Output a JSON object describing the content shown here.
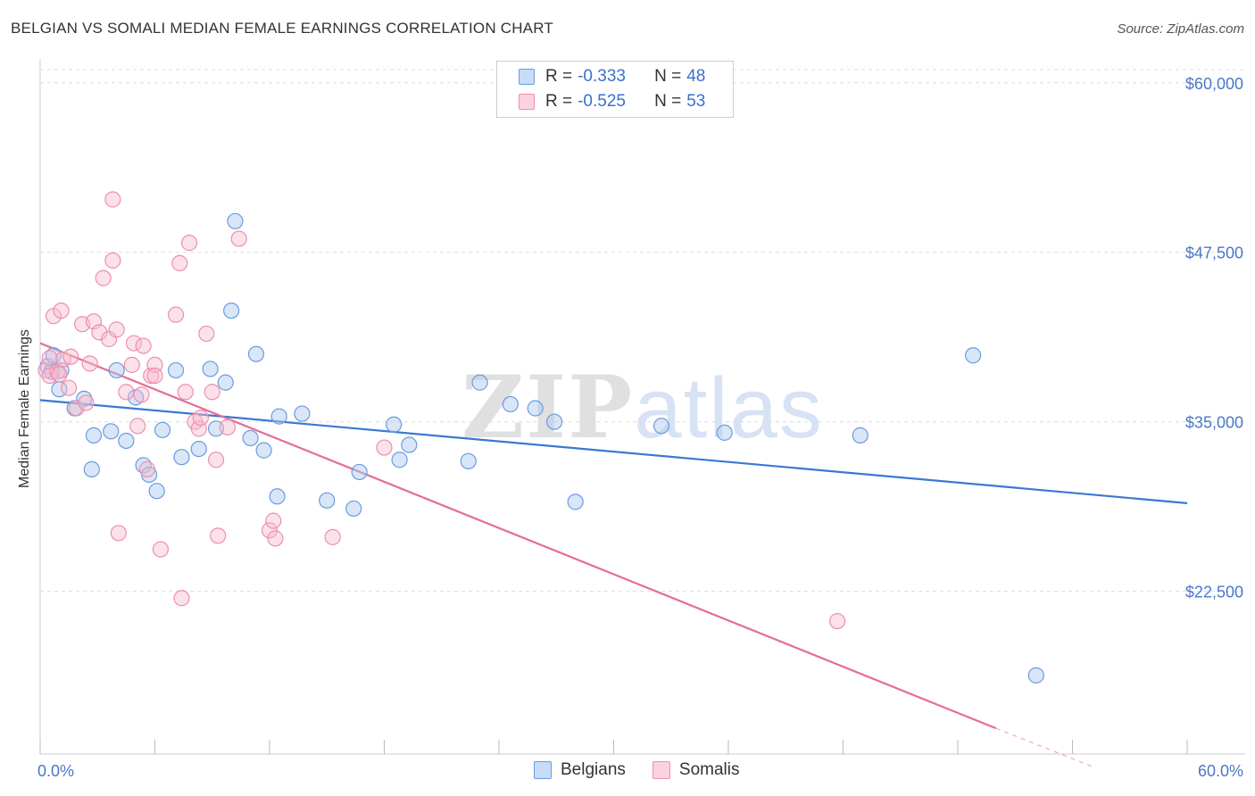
{
  "title": "BELGIAN VS SOMALI MEDIAN FEMALE EARNINGS CORRELATION CHART",
  "source": "Source: ZipAtlas.com",
  "watermark": "ZIPatlas",
  "colors": {
    "belgian_fill": "#a9c8f0",
    "belgian_stroke": "#6b9be0",
    "belgian_line": "#3a78d0",
    "somali_fill": "#f7bccf",
    "somali_stroke": "#ee8fae",
    "somali_line": "#e46d98",
    "tick_text": "#4a78c8",
    "grid": "#dddddd"
  },
  "legend": {
    "belgians": {
      "r_label": "R =",
      "r_value": "-0.333",
      "n_label": "N =",
      "n_value": "48"
    },
    "somalis": {
      "r_label": "R =",
      "r_value": "-0.525",
      "n_label": "N =",
      "n_value": "53"
    }
  },
  "bottom_legend": {
    "belgians": "Belgians",
    "somalis": "Somalis"
  },
  "chart_data": {
    "type": "scatter",
    "title": "BELGIAN VS SOMALI MEDIAN FEMALE EARNINGS CORRELATION CHART",
    "xlabel": "",
    "ylabel": "Median Female Earnings",
    "xlim": [
      0,
      60
    ],
    "ylim": [
      10500,
      61500
    ],
    "x_tick_labels": [
      "0.0%",
      "60.0%"
    ],
    "y_ticks": [
      22500,
      35000,
      47500,
      60000
    ],
    "y_tick_labels": [
      "$22,500",
      "$35,000",
      "$47,500",
      "$60,000"
    ],
    "series": [
      {
        "name": "Belgians",
        "r": -0.333,
        "n": 48,
        "trend": {
          "x0": 0,
          "y0": 36600,
          "x1": 60,
          "y1": 29000
        },
        "points": [
          [
            0.4,
            39100
          ],
          [
            0.7,
            39900
          ],
          [
            1.1,
            38800
          ],
          [
            1.0,
            37400
          ],
          [
            1.8,
            36000
          ],
          [
            2.3,
            36700
          ],
          [
            2.8,
            34000
          ],
          [
            2.7,
            31500
          ],
          [
            3.7,
            34300
          ],
          [
            4.0,
            38800
          ],
          [
            4.5,
            33600
          ],
          [
            5.0,
            36800
          ],
          [
            5.4,
            31800
          ],
          [
            5.7,
            31100
          ],
          [
            6.1,
            29900
          ],
          [
            6.4,
            34400
          ],
          [
            7.1,
            38800
          ],
          [
            7.4,
            32400
          ],
          [
            8.3,
            33000
          ],
          [
            8.9,
            38900
          ],
          [
            9.2,
            34500
          ],
          [
            9.7,
            37900
          ],
          [
            10.2,
            49800
          ],
          [
            10.0,
            43200
          ],
          [
            11.3,
            40000
          ],
          [
            11.0,
            33800
          ],
          [
            11.7,
            32900
          ],
          [
            12.4,
            29500
          ],
          [
            12.5,
            35400
          ],
          [
            13.7,
            35600
          ],
          [
            15.0,
            29200
          ],
          [
            16.4,
            28600
          ],
          [
            16.7,
            31300
          ],
          [
            18.5,
            34800
          ],
          [
            18.8,
            32200
          ],
          [
            19.3,
            33300
          ],
          [
            22.4,
            32100
          ],
          [
            23.0,
            37900
          ],
          [
            24.6,
            36300
          ],
          [
            25.9,
            36000
          ],
          [
            26.9,
            35000
          ],
          [
            28.0,
            29100
          ],
          [
            32.5,
            34700
          ],
          [
            35.8,
            34200
          ],
          [
            42.9,
            34000
          ],
          [
            48.8,
            39900
          ],
          [
            52.1,
            16300
          ],
          [
            0.6,
            38700
          ]
        ]
      },
      {
        "name": "Somalis",
        "r": -0.525,
        "n": 53,
        "trend": {
          "x0": 0,
          "y0": 40800,
          "x1": 50,
          "y1": 12400
        },
        "trend_dashed": {
          "x0": 50,
          "y0": 12400,
          "x1": 55,
          "y1": 9600
        },
        "points": [
          [
            0.3,
            38800
          ],
          [
            0.5,
            38400
          ],
          [
            0.7,
            42800
          ],
          [
            0.9,
            38700
          ],
          [
            1.1,
            43200
          ],
          [
            1.2,
            39600
          ],
          [
            1.5,
            37500
          ],
          [
            1.6,
            39800
          ],
          [
            1.9,
            36000
          ],
          [
            2.2,
            42200
          ],
          [
            2.4,
            36400
          ],
          [
            2.6,
            39300
          ],
          [
            2.8,
            42400
          ],
          [
            3.1,
            41600
          ],
          [
            3.3,
            45600
          ],
          [
            3.6,
            41100
          ],
          [
            3.8,
            46900
          ],
          [
            3.8,
            51400
          ],
          [
            4.0,
            41800
          ],
          [
            4.1,
            26800
          ],
          [
            4.5,
            37200
          ],
          [
            4.8,
            39200
          ],
          [
            4.9,
            40800
          ],
          [
            5.1,
            34700
          ],
          [
            5.3,
            37000
          ],
          [
            5.4,
            40600
          ],
          [
            5.6,
            31500
          ],
          [
            5.8,
            38400
          ],
          [
            6.0,
            39200
          ],
          [
            6.3,
            25600
          ],
          [
            7.1,
            42900
          ],
          [
            7.3,
            46700
          ],
          [
            7.6,
            37200
          ],
          [
            7.8,
            48200
          ],
          [
            7.4,
            22000
          ],
          [
            8.1,
            35000
          ],
          [
            8.3,
            34500
          ],
          [
            8.4,
            35300
          ],
          [
            8.7,
            41500
          ],
          [
            9.0,
            37200
          ],
          [
            9.3,
            26600
          ],
          [
            9.2,
            32200
          ],
          [
            9.8,
            34600
          ],
          [
            10.4,
            48500
          ],
          [
            12.0,
            27000
          ],
          [
            12.2,
            27700
          ],
          [
            12.3,
            26400
          ],
          [
            15.3,
            26500
          ],
          [
            18.0,
            33100
          ],
          [
            41.7,
            20300
          ],
          [
            0.5,
            39700
          ],
          [
            1.0,
            38500
          ],
          [
            6.0,
            38400
          ]
        ]
      }
    ]
  }
}
